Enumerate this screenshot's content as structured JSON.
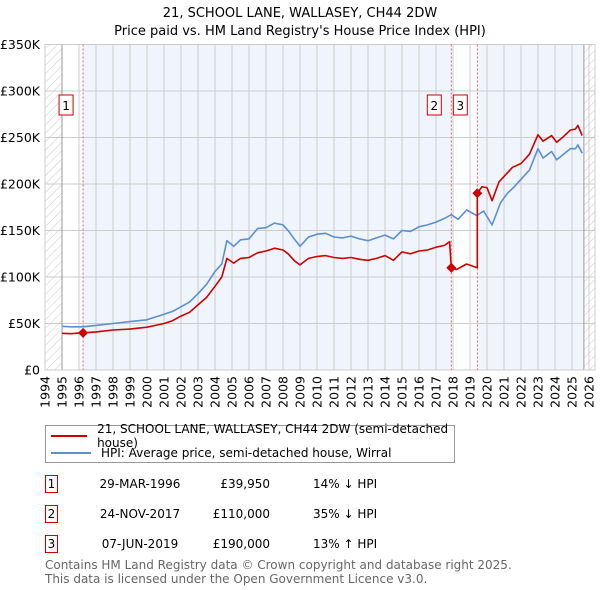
{
  "chart_data": {
    "type": "line",
    "title": "21, SCHOOL LANE, WALLASEY, CH44 2DW",
    "subtitle": "Price paid vs. HM Land Registry's House Price Index (HPI)",
    "xlim": [
      1994,
      2026.35
    ],
    "ylim": [
      0,
      350000
    ],
    "x_ticks": [
      "1994",
      "1995",
      "1996",
      "1997",
      "1998",
      "1999",
      "2000",
      "2001",
      "2002",
      "2003",
      "2004",
      "2005",
      "2006",
      "2007",
      "2008",
      "2009",
      "2010",
      "2011",
      "2012",
      "2013",
      "2014",
      "2015",
      "2016",
      "2017",
      "2018",
      "2019",
      "2020",
      "2021",
      "2022",
      "2023",
      "2024",
      "2025",
      "2026"
    ],
    "y_ticks": [
      {
        "value": 0,
        "label": "£0"
      },
      {
        "value": 50000,
        "label": "£50K"
      },
      {
        "value": 100000,
        "label": "£100K"
      },
      {
        "value": 150000,
        "label": "£150K"
      },
      {
        "value": 200000,
        "label": "£200K"
      },
      {
        "value": 250000,
        "label": "£250K"
      },
      {
        "value": 300000,
        "label": "£300K"
      },
      {
        "value": 350000,
        "label": "£350K"
      }
    ],
    "grid": true,
    "data_range": [
      1995,
      2025.7
    ],
    "series": [
      {
        "name": "21, SCHOOL LANE, WALLASEY, CH44 2DW (semi-detached house)",
        "color": "#cc0000",
        "points": [
          [
            1995,
            39500
          ],
          [
            1995.5,
            39000
          ],
          [
            1996.24,
            39950
          ],
          [
            1997,
            41000
          ],
          [
            1998,
            43000
          ],
          [
            1999,
            44000
          ],
          [
            2000,
            46000
          ],
          [
            2000.5,
            48000
          ],
          [
            2001,
            50000
          ],
          [
            2001.5,
            53000
          ],
          [
            2002,
            58000
          ],
          [
            2002.5,
            62000
          ],
          [
            2003,
            70000
          ],
          [
            2003.5,
            78000
          ],
          [
            2004,
            90000
          ],
          [
            2004.4,
            100000
          ],
          [
            2004.7,
            120000
          ],
          [
            2005.1,
            115000
          ],
          [
            2005.5,
            120000
          ],
          [
            2006,
            121000
          ],
          [
            2006.5,
            126000
          ],
          [
            2007,
            128000
          ],
          [
            2007.5,
            131000
          ],
          [
            2008,
            129000
          ],
          [
            2008.3,
            125000
          ],
          [
            2008.7,
            117000
          ],
          [
            2009,
            113000
          ],
          [
            2009.5,
            120000
          ],
          [
            2010,
            122000
          ],
          [
            2010.5,
            123000
          ],
          [
            2011,
            121000
          ],
          [
            2011.5,
            120000
          ],
          [
            2012,
            121000
          ],
          [
            2012.5,
            119000
          ],
          [
            2013,
            118000
          ],
          [
            2013.5,
            120000
          ],
          [
            2014,
            123000
          ],
          [
            2014.5,
            118000
          ],
          [
            2015,
            127000
          ],
          [
            2015.5,
            125000
          ],
          [
            2016,
            128000
          ],
          [
            2016.5,
            129000
          ],
          [
            2017,
            132000
          ],
          [
            2017.5,
            134000
          ],
          [
            2017.8,
            138000
          ],
          [
            2017.9,
            110000
          ],
          [
            2018.2,
            108000
          ],
          [
            2018.8,
            114000
          ],
          [
            2019.43,
            110000
          ],
          [
            2019.43,
            190000
          ],
          [
            2019.7,
            197000
          ],
          [
            2020.0,
            196000
          ],
          [
            2020.3,
            182000
          ],
          [
            2020.7,
            202000
          ],
          [
            2021.2,
            212000
          ],
          [
            2021.5,
            218000
          ],
          [
            2022,
            222000
          ],
          [
            2022.5,
            232000
          ],
          [
            2023,
            253000
          ],
          [
            2023.3,
            246000
          ],
          [
            2023.8,
            252000
          ],
          [
            2024.1,
            245000
          ],
          [
            2024.5,
            251000
          ],
          [
            2024.9,
            258000
          ],
          [
            2025.2,
            259000
          ],
          [
            2025.35,
            263000
          ],
          [
            2025.6,
            252000
          ]
        ]
      },
      {
        "name": "HPI: Average price, semi-detached house, Wirral",
        "color": "#5b8fd0",
        "points": [
          [
            1995,
            47000
          ],
          [
            1995.5,
            46500
          ],
          [
            1996.24,
            46500
          ],
          [
            1997,
            48000
          ],
          [
            1998,
            50000
          ],
          [
            1999,
            52000
          ],
          [
            2000,
            54000
          ],
          [
            2000.5,
            57000
          ],
          [
            2001,
            60000
          ],
          [
            2001.5,
            63000
          ],
          [
            2002,
            68000
          ],
          [
            2002.5,
            73000
          ],
          [
            2003,
            82000
          ],
          [
            2003.5,
            92000
          ],
          [
            2004,
            106000
          ],
          [
            2004.4,
            114000
          ],
          [
            2004.7,
            139000
          ],
          [
            2005.1,
            133000
          ],
          [
            2005.5,
            140000
          ],
          [
            2006,
            141000
          ],
          [
            2006.5,
            152000
          ],
          [
            2007,
            153000
          ],
          [
            2007.5,
            158000
          ],
          [
            2008,
            156000
          ],
          [
            2008.3,
            150000
          ],
          [
            2008.7,
            140000
          ],
          [
            2009,
            133000
          ],
          [
            2009.5,
            143000
          ],
          [
            2010,
            146000
          ],
          [
            2010.5,
            147000
          ],
          [
            2011,
            143000
          ],
          [
            2011.5,
            142000
          ],
          [
            2012,
            144000
          ],
          [
            2012.5,
            141000
          ],
          [
            2013,
            139000
          ],
          [
            2013.5,
            142000
          ],
          [
            2014,
            145000
          ],
          [
            2014.5,
            141000
          ],
          [
            2015,
            150000
          ],
          [
            2015.5,
            149000
          ],
          [
            2016,
            154000
          ],
          [
            2016.5,
            156000
          ],
          [
            2017,
            159000
          ],
          [
            2017.5,
            163000
          ],
          [
            2017.9,
            167000
          ],
          [
            2018.3,
            162000
          ],
          [
            2018.8,
            172000
          ],
          [
            2019.4,
            166000
          ],
          [
            2019.8,
            171000
          ],
          [
            2020.3,
            156000
          ],
          [
            2020.8,
            180000
          ],
          [
            2021.2,
            190000
          ],
          [
            2021.6,
            197000
          ],
          [
            2022,
            205000
          ],
          [
            2022.5,
            215000
          ],
          [
            2023,
            238000
          ],
          [
            2023.3,
            228000
          ],
          [
            2023.8,
            235000
          ],
          [
            2024.1,
            226000
          ],
          [
            2024.5,
            232000
          ],
          [
            2024.9,
            238000
          ],
          [
            2025.2,
            238000
          ],
          [
            2025.35,
            242000
          ],
          [
            2025.6,
            233000
          ]
        ]
      }
    ],
    "sales": [
      {
        "num": "1",
        "x": 1996.24,
        "price": 39950,
        "date": "29-MAR-1996",
        "price_label": "£39,950",
        "hpi": "14% ↓ HPI"
      },
      {
        "num": "2",
        "x": 2017.9,
        "price": 110000,
        "date": "24-NOV-2017",
        "price_label": "£110,000",
        "hpi": "35% ↓ HPI"
      },
      {
        "num": "3",
        "x": 2019.43,
        "price": 190000,
        "date": "07-JUN-2019",
        "price_label": "£190,000",
        "hpi": "13% ↑ HPI"
      }
    ],
    "legend_position": "below"
  },
  "colors": {
    "price": "#cc0000",
    "hpi": "#5b8fd0",
    "shade": "#f0f5fd",
    "grid": "#cccccc"
  },
  "footer": {
    "line1": "Contains HM Land Registry data © Crown copyright and database right 2025.",
    "line2": "This data is licensed under the Open Government Licence v3.0."
  }
}
